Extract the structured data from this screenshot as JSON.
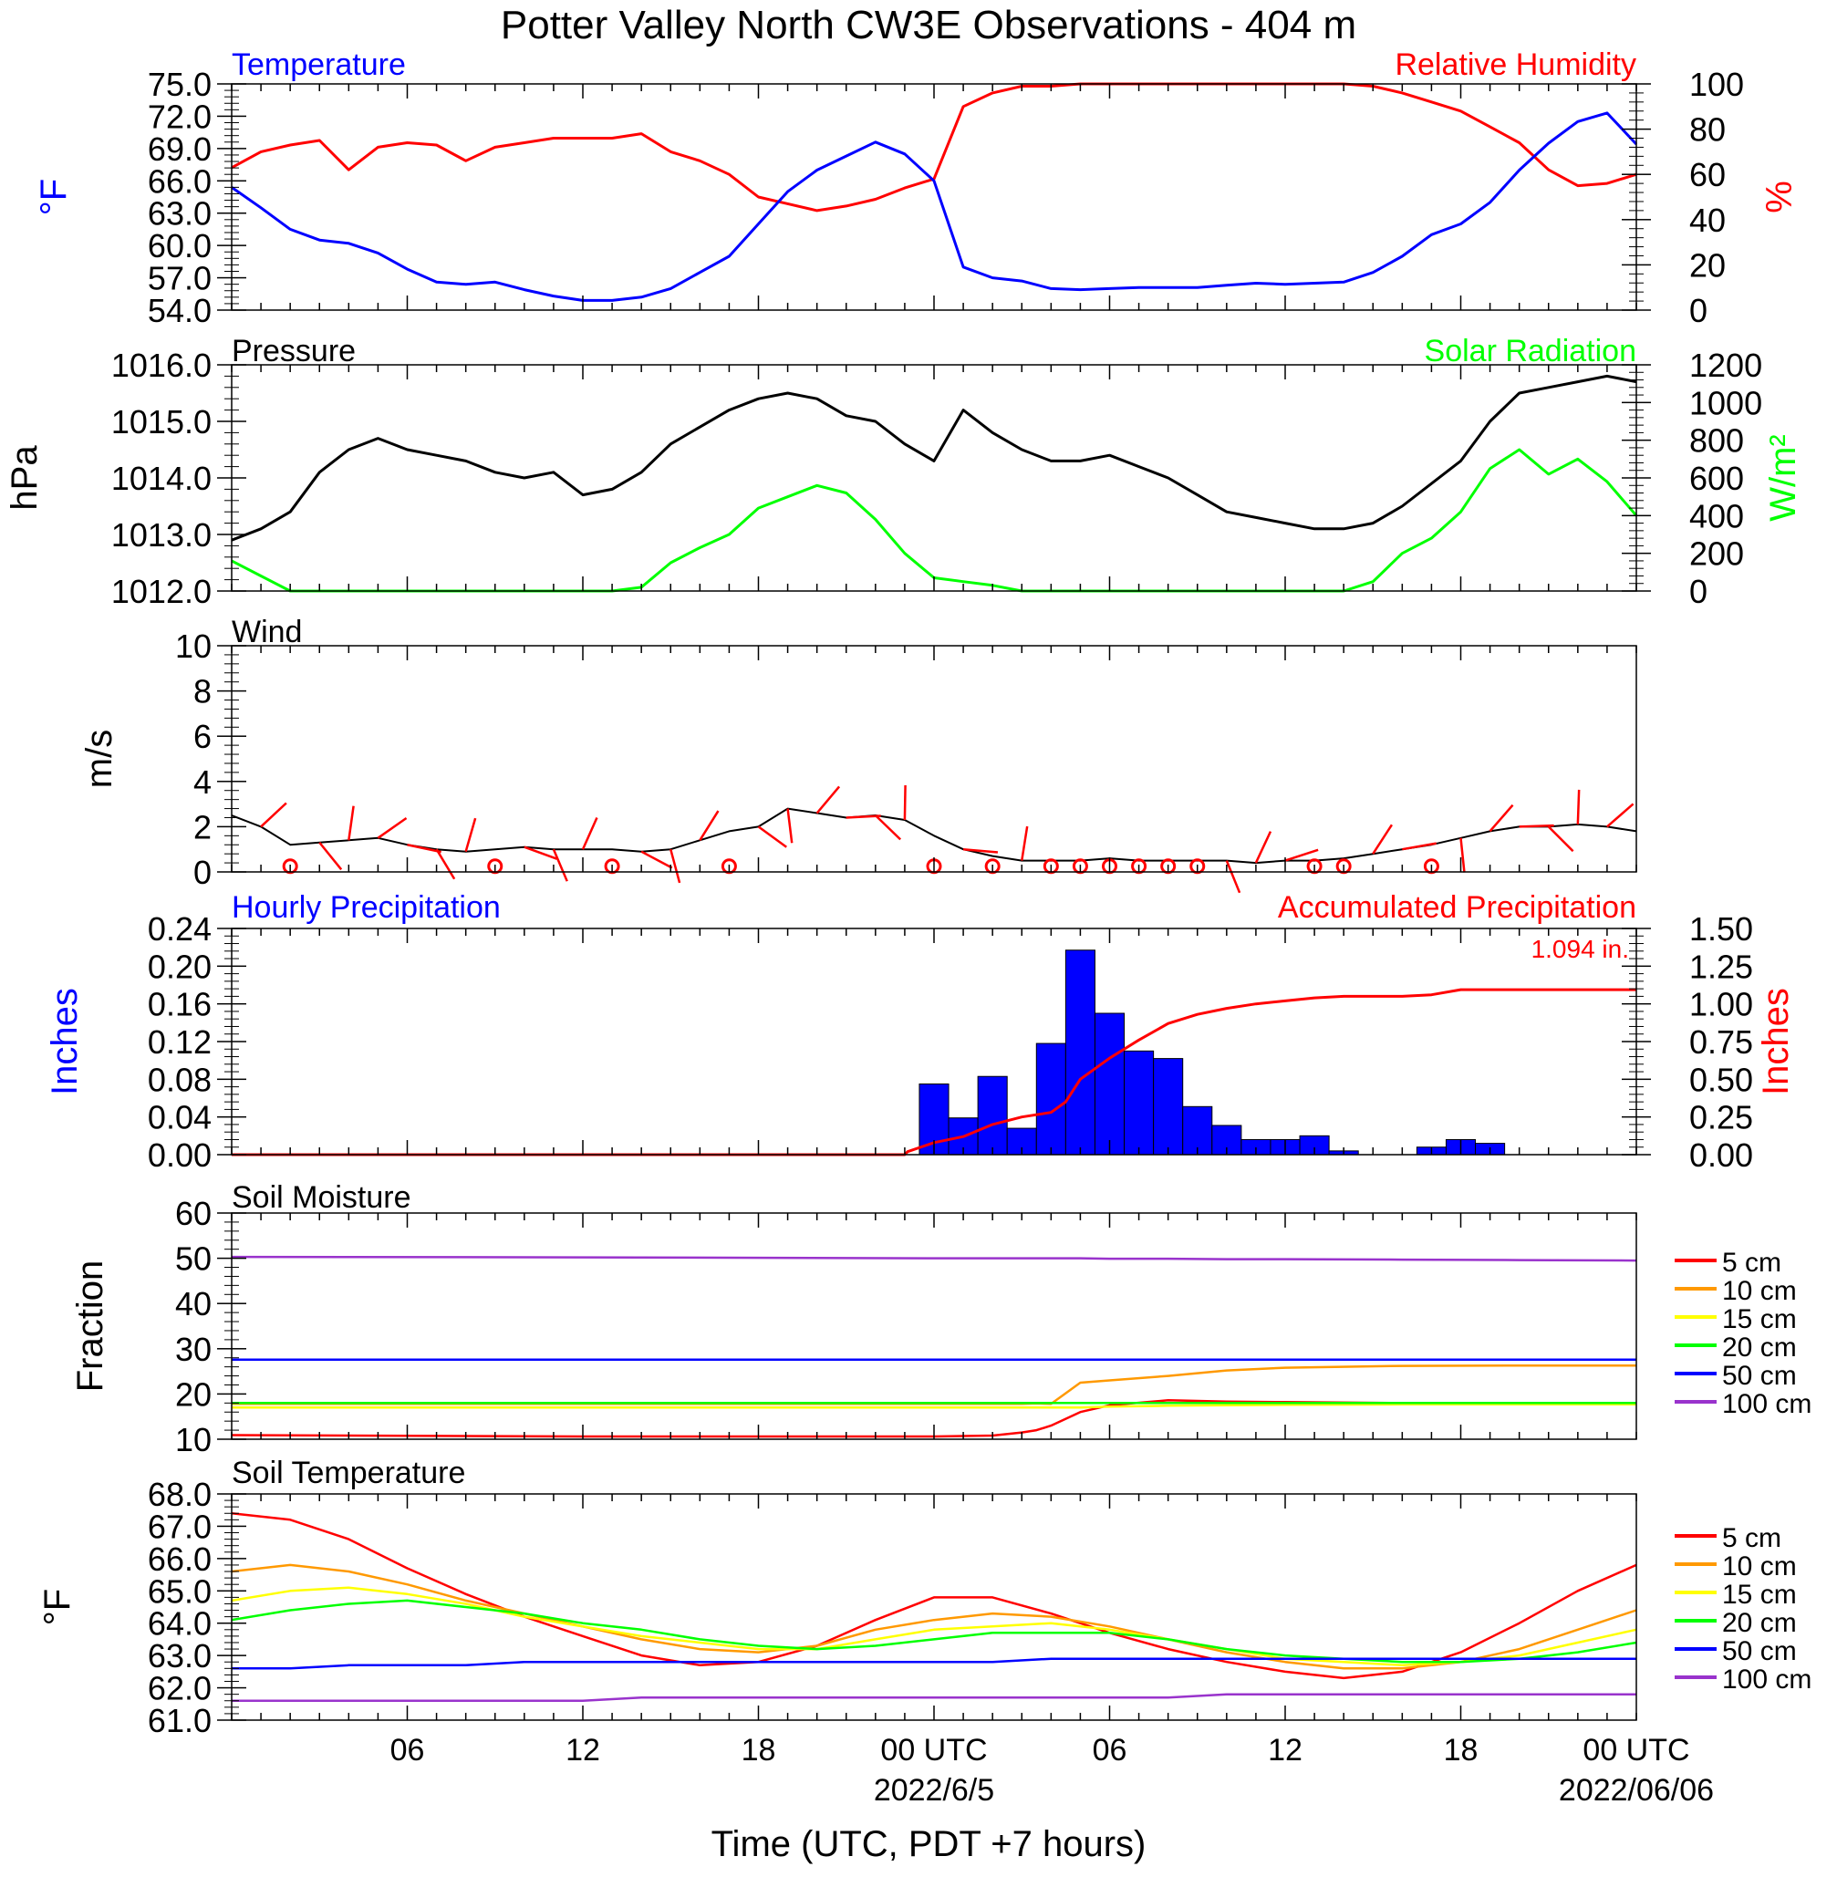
{
  "title": "Potter Valley North CW3E Observations - 404 m",
  "xlabel": "Time (UTC, PDT +7 hours)",
  "x_ticks": [
    "06",
    "12",
    "18",
    "00 UTC",
    "06",
    "12",
    "18",
    "00 UTC"
  ],
  "x_dates": [
    "2022/6/5",
    "2022/06/06"
  ],
  "colors": {
    "temp": "#0000ff",
    "rh": "#ff0000",
    "pressure": "#000000",
    "solar": "#00ff00",
    "wind": "#000000",
    "barb": "#ff0000",
    "hourly": "#0000ff",
    "accum": "#ff0000",
    "d5": "#ff0000",
    "d10": "#ff9900",
    "d15": "#ffff00",
    "d20": "#00ff00",
    "d50": "#0000ff",
    "d100": "#9933cc"
  },
  "chart_data": [
    {
      "type": "line",
      "title_left": "Temperature",
      "title_right": "Relative Humidity",
      "ylabel_left": "°F",
      "ylabel_right": "%",
      "ylim_left": [
        54,
        75
      ],
      "yticks_left": [
        "75.0",
        "72.0",
        "69.0",
        "66.0",
        "63.0",
        "60.0",
        "57.0",
        "54.0"
      ],
      "ylim_right": [
        0,
        100
      ],
      "yticks_right": [
        "100",
        "80",
        "60",
        "40",
        "20",
        "0"
      ],
      "x_hours": [
        0,
        1,
        2,
        3,
        4,
        5,
        6,
        7,
        8,
        9,
        10,
        11,
        12,
        13,
        14,
        15,
        16,
        17,
        18,
        19,
        20,
        21,
        22,
        23,
        24,
        25,
        26,
        27,
        28,
        29,
        30,
        31,
        32,
        33,
        34,
        35,
        36,
        37,
        38,
        39,
        40,
        41,
        42,
        43,
        44,
        45,
        46,
        47,
        48
      ],
      "series": [
        {
          "name": "Temperature",
          "axis": "left",
          "values": [
            65.4,
            63.5,
            61.5,
            60.5,
            60.2,
            59.3,
            57.8,
            56.6,
            56.4,
            56.6,
            55.9,
            55.3,
            54.9,
            54.9,
            55.2,
            56.0,
            57.5,
            59.0,
            62.0,
            65.0,
            67.0,
            68.3,
            69.6,
            68.5,
            66.0,
            58.0,
            57.0,
            56.7,
            56.0,
            55.9,
            56.0,
            56.1,
            56.1,
            56.1,
            56.3,
            56.5,
            56.4,
            56.5,
            56.6,
            57.5,
            59.0,
            61.0,
            62.0,
            64.0,
            67.0,
            69.5,
            71.5,
            72.3,
            69.4
          ]
        },
        {
          "name": "Relative Humidity",
          "axis": "right",
          "values": [
            63,
            70,
            73,
            75,
            62,
            72,
            74,
            73,
            66,
            72,
            74,
            76,
            76,
            76,
            78,
            70,
            66,
            60,
            50,
            47,
            44,
            46,
            49,
            54,
            58,
            90,
            96,
            99,
            99,
            100,
            100,
            100,
            100,
            100,
            100,
            100,
            100,
            100,
            100,
            99,
            96,
            92,
            88,
            81,
            74,
            62,
            55,
            56,
            60
          ]
        }
      ]
    },
    {
      "type": "line",
      "title_left": "Pressure",
      "title_right": "Solar Radiation",
      "ylabel_left": "hPa",
      "ylabel_right": "W/m²",
      "ylim_left": [
        1012.0,
        1016.0
      ],
      "yticks_left": [
        "1016.0",
        "1015.0",
        "1014.0",
        "1013.0",
        "1012.0"
      ],
      "ylim_right": [
        0,
        1200
      ],
      "yticks_right": [
        "1200",
        "1000",
        "800",
        "600",
        "400",
        "200",
        "0"
      ],
      "x_hours": [
        0,
        1,
        2,
        3,
        4,
        5,
        6,
        7,
        8,
        9,
        10,
        11,
        12,
        13,
        14,
        15,
        16,
        17,
        18,
        19,
        20,
        21,
        22,
        23,
        24,
        25,
        26,
        27,
        28,
        29,
        30,
        31,
        32,
        33,
        34,
        35,
        36,
        37,
        38,
        39,
        40,
        41,
        42,
        43,
        44,
        45,
        46,
        47,
        48
      ],
      "series": [
        {
          "name": "Pressure",
          "axis": "left",
          "values": [
            1012.9,
            1013.1,
            1013.4,
            1014.1,
            1014.5,
            1014.7,
            1014.5,
            1014.4,
            1014.3,
            1014.1,
            1014.0,
            1014.1,
            1013.7,
            1013.8,
            1014.1,
            1014.6,
            1014.9,
            1015.2,
            1015.4,
            1015.5,
            1015.4,
            1015.1,
            1015.0,
            1014.6,
            1014.3,
            1015.2,
            1014.8,
            1014.5,
            1014.3,
            1014.3,
            1014.4,
            1014.2,
            1014.0,
            1013.7,
            1013.4,
            1013.3,
            1013.2,
            1013.1,
            1013.1,
            1013.2,
            1013.5,
            1013.9,
            1014.3,
            1015.0,
            1015.5,
            1015.6,
            1015.7,
            1015.8,
            1015.7
          ]
        },
        {
          "name": "Solar Radiation",
          "axis": "right",
          "values": [
            160,
            80,
            0,
            0,
            0,
            0,
            0,
            0,
            0,
            0,
            0,
            0,
            0,
            0,
            20,
            150,
            230,
            300,
            440,
            500,
            560,
            520,
            380,
            200,
            70,
            50,
            30,
            0,
            0,
            0,
            0,
            0,
            0,
            0,
            0,
            0,
            0,
            0,
            0,
            50,
            200,
            280,
            420,
            650,
            750,
            620,
            700,
            580,
            400
          ]
        }
      ]
    },
    {
      "type": "line",
      "title_left": "Wind",
      "ylabel_left": "m/s",
      "ylim_left": [
        0,
        10
      ],
      "yticks_left": [
        "10",
        "8",
        "6",
        "4",
        "2",
        "0"
      ],
      "x_hours": [
        0,
        1,
        2,
        3,
        4,
        5,
        6,
        7,
        8,
        9,
        10,
        11,
        12,
        13,
        14,
        15,
        16,
        17,
        18,
        19,
        20,
        21,
        22,
        23,
        24,
        25,
        26,
        27,
        28,
        29,
        30,
        31,
        32,
        33,
        34,
        35,
        36,
        37,
        38,
        39,
        40,
        41,
        42,
        43,
        44,
        45,
        46,
        47,
        48
      ],
      "series": [
        {
          "name": "Wind speed",
          "values": [
            2.5,
            2.0,
            1.2,
            1.3,
            1.4,
            1.5,
            1.2,
            1.0,
            0.9,
            1.0,
            1.1,
            1.0,
            1.0,
            1.0,
            0.9,
            1.0,
            1.4,
            1.8,
            2.0,
            2.8,
            2.6,
            2.4,
            2.5,
            2.3,
            1.6,
            1.0,
            0.7,
            0.5,
            0.5,
            0.5,
            0.6,
            0.5,
            0.5,
            0.5,
            0.5,
            0.4,
            0.5,
            0.5,
            0.6,
            0.8,
            1.0,
            1.2,
            1.5,
            1.8,
            2.0,
            2.0,
            2.1,
            2.0,
            1.8
          ]
        }
      ],
      "calm_hours": [
        2,
        9,
        13,
        17,
        24,
        26,
        28,
        29,
        30,
        31,
        32,
        33,
        37,
        38,
        41
      ]
    },
    {
      "type": "bar",
      "title_left": "Hourly Precipitation",
      "title_right": "Accumulated Precipitation",
      "total_label": "1.094 in.",
      "ylabel_left": "Inches",
      "ylabel_right": "Inches",
      "ylim_left": [
        0,
        0.24
      ],
      "yticks_left": [
        "0.24",
        "0.20",
        "0.16",
        "0.12",
        "0.08",
        "0.04",
        "0.00"
      ],
      "ylim_right": [
        0,
        1.5
      ],
      "yticks_right": [
        "1.50",
        "1.25",
        "1.00",
        "0.75",
        "0.50",
        "0.25",
        "0.00"
      ],
      "hourly_bars": [
        {
          "hour": 24,
          "value": 0.075
        },
        {
          "hour": 25,
          "value": 0.039
        },
        {
          "hour": 26,
          "value": 0.083
        },
        {
          "hour": 27,
          "value": 0.028
        },
        {
          "hour": 28,
          "value": 0.118
        },
        {
          "hour": 29,
          "value": 0.217
        },
        {
          "hour": 30,
          "value": 0.15
        },
        {
          "hour": 31,
          "value": 0.11
        },
        {
          "hour": 32,
          "value": 0.102
        },
        {
          "hour": 33,
          "value": 0.051
        },
        {
          "hour": 34,
          "value": 0.031
        },
        {
          "hour": 35,
          "value": 0.016
        },
        {
          "hour": 36,
          "value": 0.016
        },
        {
          "hour": 37,
          "value": 0.02
        },
        {
          "hour": 38,
          "value": 0.004
        },
        {
          "hour": 41,
          "value": 0.008
        },
        {
          "hour": 42,
          "value": 0.016
        },
        {
          "hour": 43,
          "value": 0.012
        }
      ],
      "accumulated": {
        "hours": [
          0,
          23,
          23.1,
          24,
          25,
          26,
          27,
          28,
          28.5,
          29,
          30,
          31,
          32,
          33,
          34,
          35,
          36,
          37,
          38,
          40,
          41,
          42,
          48
        ],
        "values": [
          0,
          0,
          0.02,
          0.08,
          0.12,
          0.2,
          0.25,
          0.28,
          0.35,
          0.5,
          0.64,
          0.76,
          0.87,
          0.93,
          0.97,
          1.0,
          1.02,
          1.04,
          1.05,
          1.05,
          1.06,
          1.094,
          1.094
        ]
      }
    },
    {
      "type": "line",
      "title_left": "Soil Moisture",
      "ylabel_left": "Fraction",
      "ylim_left": [
        10,
        60
      ],
      "yticks_left": [
        "60",
        "50",
        "40",
        "30",
        "20",
        "10"
      ],
      "legend": [
        "5 cm",
        "10 cm",
        "15 cm",
        "20 cm",
        "50 cm",
        "100 cm"
      ],
      "x_hours": [
        0,
        12,
        24,
        26,
        27,
        27.5,
        28,
        29,
        30,
        32,
        34,
        36,
        40,
        44,
        48
      ],
      "series": [
        {
          "name": "5 cm",
          "values": [
            10.9,
            10.6,
            10.6,
            10.8,
            11.5,
            12.0,
            13.0,
            16.0,
            17.5,
            18.6,
            18.3,
            18.2,
            18.0,
            17.8,
            18.0
          ]
        },
        {
          "name": "10 cm",
          "values": [
            17.8,
            17.8,
            17.8,
            17.8,
            17.8,
            17.9,
            17.8,
            22.5,
            23.0,
            24.0,
            25.2,
            25.8,
            26.2,
            26.3,
            26.3
          ]
        },
        {
          "name": "15 cm",
          "values": [
            17.0,
            17.0,
            17.0,
            17.0,
            17.0,
            17.0,
            17.0,
            17.0,
            17.2,
            17.4,
            17.5,
            17.6,
            17.7,
            17.7,
            17.7
          ]
        },
        {
          "name": "20 cm",
          "values": [
            18.0,
            18.0,
            18.0,
            18.0,
            18.0,
            18.0,
            18.0,
            18.0,
            18.0,
            18.0,
            18.0,
            18.0,
            18.0,
            18.0,
            18.0
          ]
        },
        {
          "name": "50 cm",
          "values": [
            27.6,
            27.6,
            27.6,
            27.6,
            27.6,
            27.6,
            27.6,
            27.6,
            27.6,
            27.6,
            27.6,
            27.6,
            27.6,
            27.6,
            27.6
          ]
        },
        {
          "name": "100 cm",
          "values": [
            50.3,
            50.2,
            50.0,
            50.0,
            50.0,
            50.0,
            50.0,
            50.0,
            49.9,
            49.9,
            49.8,
            49.8,
            49.7,
            49.6,
            49.5
          ]
        }
      ]
    },
    {
      "type": "line",
      "title_left": "Soil Temperature",
      "ylabel_left": "°F",
      "ylim_left": [
        61.0,
        68.0
      ],
      "yticks_left": [
        "68.0",
        "67.0",
        "66.0",
        "65.0",
        "64.0",
        "63.0",
        "62.0",
        "61.0"
      ],
      "legend": [
        "5 cm",
        "10 cm",
        "15 cm",
        "20 cm",
        "50 cm",
        "100 cm"
      ],
      "x_hours": [
        0,
        2,
        4,
        6,
        8,
        10,
        12,
        14,
        16,
        18,
        20,
        22,
        24,
        26,
        28,
        30,
        32,
        34,
        36,
        38,
        40,
        42,
        44,
        46,
        48
      ],
      "series": [
        {
          "name": "5 cm",
          "values": [
            67.4,
            67.2,
            66.6,
            65.7,
            64.9,
            64.2,
            63.6,
            63.0,
            62.7,
            62.8,
            63.3,
            64.1,
            64.8,
            64.8,
            64.3,
            63.7,
            63.2,
            62.8,
            62.5,
            62.3,
            62.5,
            63.1,
            64.0,
            65.0,
            65.8
          ]
        },
        {
          "name": "10 cm",
          "values": [
            65.6,
            65.8,
            65.6,
            65.2,
            64.7,
            64.3,
            63.9,
            63.5,
            63.2,
            63.1,
            63.3,
            63.8,
            64.1,
            64.3,
            64.2,
            63.9,
            63.5,
            63.1,
            62.8,
            62.6,
            62.6,
            62.8,
            63.2,
            63.8,
            64.4
          ]
        },
        {
          "name": "15 cm",
          "values": [
            64.7,
            65.0,
            65.1,
            64.9,
            64.6,
            64.2,
            63.9,
            63.6,
            63.4,
            63.2,
            63.2,
            63.5,
            63.8,
            63.9,
            64.0,
            63.8,
            63.5,
            63.2,
            62.9,
            62.8,
            62.7,
            62.8,
            63.0,
            63.4,
            63.8
          ]
        },
        {
          "name": "20 cm",
          "values": [
            64.1,
            64.4,
            64.6,
            64.7,
            64.5,
            64.3,
            64.0,
            63.8,
            63.5,
            63.3,
            63.2,
            63.3,
            63.5,
            63.7,
            63.7,
            63.7,
            63.5,
            63.2,
            63.0,
            62.9,
            62.8,
            62.8,
            62.9,
            63.1,
            63.4
          ]
        },
        {
          "name": "50 cm",
          "values": [
            62.6,
            62.6,
            62.7,
            62.7,
            62.7,
            62.8,
            62.8,
            62.8,
            62.8,
            62.8,
            62.8,
            62.8,
            62.8,
            62.8,
            62.9,
            62.9,
            62.9,
            62.9,
            62.9,
            62.9,
            62.9,
            62.9,
            62.9,
            62.9,
            62.9
          ]
        },
        {
          "name": "100 cm",
          "values": [
            61.6,
            61.6,
            61.6,
            61.6,
            61.6,
            61.6,
            61.6,
            61.7,
            61.7,
            61.7,
            61.7,
            61.7,
            61.7,
            61.7,
            61.7,
            61.7,
            61.7,
            61.8,
            61.8,
            61.8,
            61.8,
            61.8,
            61.8,
            61.8,
            61.8
          ]
        }
      ]
    }
  ]
}
